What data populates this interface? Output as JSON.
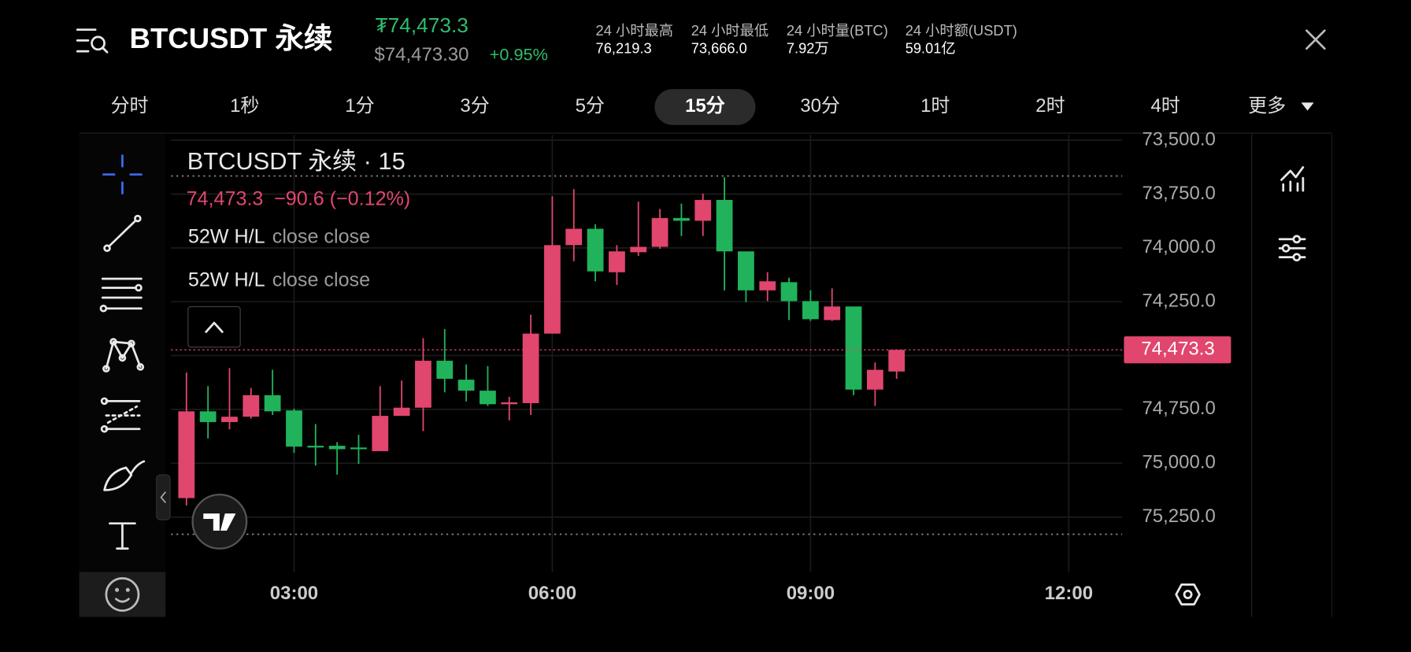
{
  "header": {
    "title": "BTCUSDT 永续",
    "price": "₮74,473.3",
    "usd_price": "$74,473.30",
    "change": "+0.95%",
    "stats": [
      {
        "label": "24 小时最高",
        "value": "76,219.3"
      },
      {
        "label": "24 小时最低",
        "value": "73,666.0"
      },
      {
        "label": "24 小时量(BTC)",
        "value": "7.92万"
      },
      {
        "label": "24 小时额(USDT)",
        "value": "59.01亿"
      }
    ]
  },
  "intervals": {
    "items": [
      "分时",
      "1秒",
      "1分",
      "3分",
      "5分",
      "15分",
      "30分",
      "1时",
      "2时",
      "4时",
      "更多"
    ],
    "active": 5
  },
  "legend": {
    "symbol": "BTCUSDT 永续 · 15",
    "price": "74,473.3",
    "change": "−90.6",
    "change_pct": "(−0.12%)",
    "studies": [
      {
        "name": "52W H/L",
        "inputs": "close close"
      },
      {
        "name": "52W H/L",
        "inputs": "close close"
      }
    ]
  },
  "chart_data": {
    "type": "candlestick",
    "x": [
      1.75,
      2,
      2.25,
      2.5,
      2.75,
      3,
      3.25,
      3.5,
      3.75,
      4,
      4.25,
      4.5,
      4.75,
      5,
      5.25,
      5.5,
      5.75,
      6,
      6.25,
      6.5,
      6.75,
      7,
      7.25,
      7.5,
      7.75,
      8,
      8.25,
      8.5,
      8.75,
      9,
      9.25,
      9.5,
      9.75,
      10
    ],
    "open": [
      75162,
      74759,
      74809,
      74784,
      74684,
      74755,
      74919,
      74919,
      74927,
      74944,
      74780,
      74742,
      74524,
      74612,
      74663,
      74726,
      74721,
      74398,
      73987,
      73911,
      74113,
      74020,
      73995,
      73861,
      73874,
      73777,
      74016,
      74197,
      74159,
      74247,
      74335,
      74272,
      74658,
      74574
    ],
    "high": [
      75196,
      74885,
      74843,
      74793,
      74776,
      74952,
      75011,
      75053,
      75003,
      74944,
      74780,
      74851,
      74671,
      74713,
      74734,
      74801,
      74776,
      74398,
      74062,
      74155,
      74172,
      74037,
      74004,
      73945,
      73945,
      74197,
      74251,
      74247,
      74335,
      74339,
      74339,
      74684,
      74734,
      74608
    ],
    "low": [
      74579,
      74642,
      74558,
      74650,
      74566,
      74747,
      74818,
      74902,
      74868,
      74642,
      74616,
      74419,
      74377,
      74541,
      74549,
      74692,
      74310,
      73760,
      73727,
      73890,
      73987,
      73785,
      73819,
      73794,
      73748,
      73672,
      74016,
      74113,
      74138,
      74197,
      74188,
      74272,
      74532,
      74473.3
    ],
    "close": [
      74759,
      74809,
      74784,
      74684,
      74759,
      74923,
      74927,
      74935,
      74935,
      74780,
      74742,
      74524,
      74608,
      74663,
      74726,
      74717,
      74398,
      73987,
      73911,
      74109,
      74016,
      73995,
      73861,
      73874,
      73777,
      74016,
      74197,
      74155,
      74247,
      74331,
      74272,
      74658,
      74566,
      74473.3
    ],
    "up_color": "#21b35b",
    "down_color": "#e0466e",
    "xlim": [
      1.57,
      12.62
    ],
    "xticks": [
      {
        "value": 3,
        "label": "03:00"
      },
      {
        "value": 6,
        "label": "06:00"
      },
      {
        "value": 9,
        "label": "09:00"
      },
      {
        "value": 12,
        "label": "12:00"
      }
    ],
    "ylim": [
      75480,
      73475
    ],
    "yticks": [
      {
        "value": 73500,
        "label": "73,500.0"
      },
      {
        "value": 73750,
        "label": "73,750.0"
      },
      {
        "value": 74000,
        "label": "74,000.0"
      },
      {
        "value": 74250,
        "label": "74,250.0"
      },
      {
        "value": 74500,
        "label": "74,500.0"
      },
      {
        "value": 74750,
        "label": "74,750.0"
      },
      {
        "value": 75000,
        "label": "75,000.0"
      },
      {
        "value": 75250,
        "label": "75,250.0"
      }
    ],
    "grid": true,
    "last_price": 74473.3,
    "last_price_label": "74,473.3",
    "dotted_lines": [
      73666,
      75330
    ]
  }
}
